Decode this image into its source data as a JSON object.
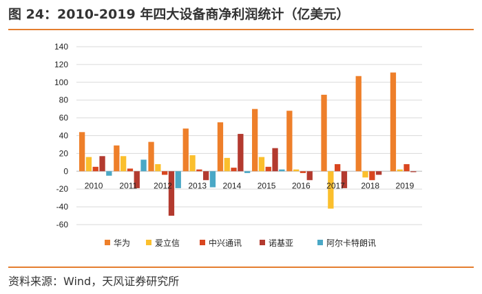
{
  "title": "图 24：2010-2019 年四大设备商净利润统计（亿美元）",
  "source": "资料来源：Wind，天风证券研究所",
  "colors": {
    "accent": "#e47d2e",
    "series": [
      "#ee7f2a",
      "#fbbf2d",
      "#d9461f",
      "#b33a2f",
      "#4aa8c6"
    ]
  },
  "chart_data": {
    "type": "bar",
    "title": "",
    "xlabel": "",
    "ylabel": "",
    "ylim": [
      -60,
      140
    ],
    "yticks": [
      140,
      120,
      100,
      80,
      60,
      40,
      20,
      0,
      -20,
      -40,
      -60
    ],
    "categories": [
      "2010",
      "2011",
      "2012",
      "2013",
      "2014",
      "2015",
      "2016",
      "2017",
      "2018",
      "2019"
    ],
    "series": [
      {
        "name": "华为",
        "values": [
          44,
          29,
          33,
          48,
          55,
          70,
          68,
          86,
          107,
          111
        ]
      },
      {
        "name": "爱立信",
        "values": [
          16,
          17,
          8,
          18,
          15,
          16,
          2,
          -42,
          -7,
          2
        ]
      },
      {
        "name": "中兴通讯",
        "values": [
          5,
          3,
          -4,
          2,
          4,
          5,
          -2,
          8,
          -10,
          8
        ]
      },
      {
        "name": "诺基亚",
        "values": [
          17,
          -19,
          -50,
          -10,
          42,
          26,
          -10,
          -19,
          -4,
          -1
        ]
      },
      {
        "name": "阿尔卡特朗讯",
        "values": [
          -5,
          13,
          -19,
          -18,
          -2,
          2,
          0,
          0,
          0,
          0
        ]
      }
    ],
    "legend_position": "bottom",
    "grid": true
  }
}
